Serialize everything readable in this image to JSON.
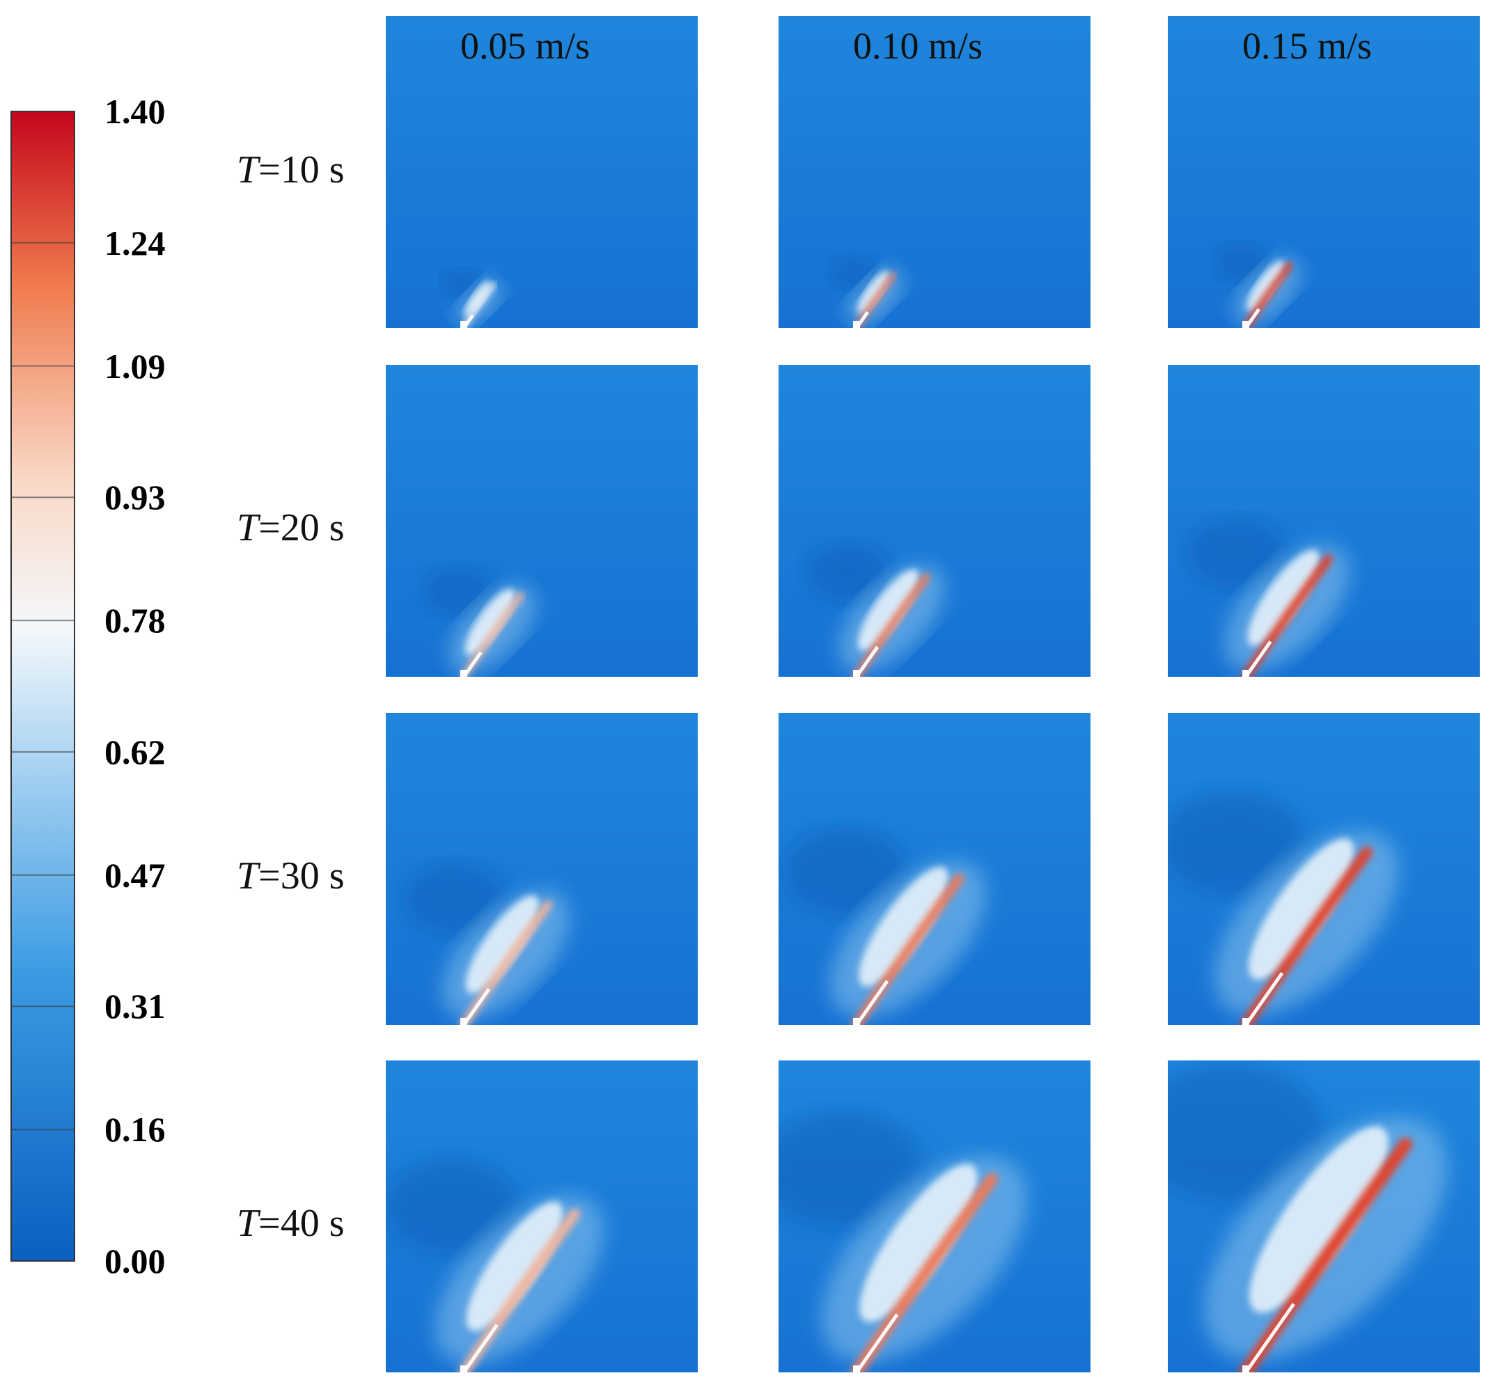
{
  "colorbar": {
    "range": [
      0,
      1.4
    ],
    "ticks": [
      {
        "value": 0,
        "label": "0.00"
      },
      0.16,
      0.31,
      0.47,
      0.62,
      0.78,
      0.93,
      1.09,
      1.24,
      {
        "value": 1.4,
        "label": "1.40"
      }
    ]
  },
  "columns": [
    "0.05 m/s",
    "0.10 m/s",
    "0.15 m/s"
  ],
  "rows": [
    "T=10 s",
    "T=20 s",
    "T=30 s",
    "T=40 s"
  ]
}
